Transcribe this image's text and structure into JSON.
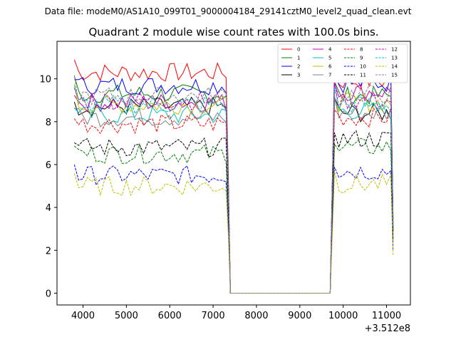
{
  "chart_data": {
    "type": "line",
    "suptitle": "Data file: modeM0/AS1A10_099T01_9000004184_29141cztM0_level2_quad_clean.evt",
    "title": "Quadrant 2 module wise count rates with 100.0s bins.",
    "xlabel": "",
    "ylabel": "",
    "x_offset_label": "+3.512e8",
    "xlim": [
      3400,
      11550
    ],
    "ylim": [
      -0.55,
      11.75
    ],
    "xticks": [
      4000,
      5000,
      6000,
      7000,
      8000,
      9000,
      10000,
      11000
    ],
    "xtick_labels": [
      "4000",
      "5000",
      "6000",
      "7000",
      "8000",
      "9000",
      "10000",
      "11000"
    ],
    "yticks": [
      0,
      2,
      4,
      6,
      8,
      10
    ],
    "ytick_labels": [
      "0",
      "2",
      "4",
      "6",
      "8",
      "10"
    ],
    "legend_position": "top-right",
    "segments": [
      {
        "start": 3800,
        "end": 7300,
        "drop": [
          7350,
          7400
        ]
      },
      {
        "start": 9800,
        "end": 11100,
        "rise": [
          9700,
          9750
        ],
        "end_drop": 11150
      }
    ],
    "series": [
      {
        "name": "0",
        "color": "#ff0000",
        "dash": "solid",
        "level1": 10.3,
        "level2": 9.9
      },
      {
        "name": "1",
        "color": "#008000",
        "dash": "solid",
        "level1": 9.3,
        "level2": 9.2
      },
      {
        "name": "2",
        "color": "#0000ff",
        "dash": "solid",
        "level1": 9.7,
        "level2": 9.8
      },
      {
        "name": "3",
        "color": "#000000",
        "dash": "solid",
        "level1": 8.7,
        "level2": 8.4
      },
      {
        "name": "4",
        "color": "#bf00bf",
        "dash": "solid",
        "level1": 8.9,
        "level2": 9.4
      },
      {
        "name": "5",
        "color": "#00bfbf",
        "dash": "solid",
        "level1": 8.3,
        "level2": 8.5
      },
      {
        "name": "6",
        "color": "#bfbf00",
        "dash": "solid",
        "level1": 8.8,
        "level2": 8.9
      },
      {
        "name": "7",
        "color": "#808080",
        "dash": "solid",
        "level1": 8.2,
        "level2": 8.4
      },
      {
        "name": "8",
        "color": "#ff0000",
        "dash": "dashed",
        "level1": 7.9,
        "level2": 8.2
      },
      {
        "name": "9",
        "color": "#008000",
        "dash": "dashed",
        "level1": 6.5,
        "level2": 6.8
      },
      {
        "name": "10",
        "color": "#0000ff",
        "dash": "dashed",
        "level1": 5.5,
        "level2": 5.7
      },
      {
        "name": "11",
        "color": "#000000",
        "dash": "dashed",
        "level1": 6.8,
        "level2": 7.2
      },
      {
        "name": "12",
        "color": "#bf00bf",
        "dash": "dashed",
        "level1": 9.0,
        "level2": 9.0
      },
      {
        "name": "13",
        "color": "#00bfbf",
        "dash": "dashed",
        "level1": 8.8,
        "level2": 8.8
      },
      {
        "name": "14",
        "color": "#bfbf00",
        "dash": "dashed",
        "level1": 5.0,
        "level2": 5.1
      },
      {
        "name": "15",
        "color": "#808080",
        "dash": "dashed",
        "level1": 9.2,
        "level2": 9.3
      }
    ]
  }
}
